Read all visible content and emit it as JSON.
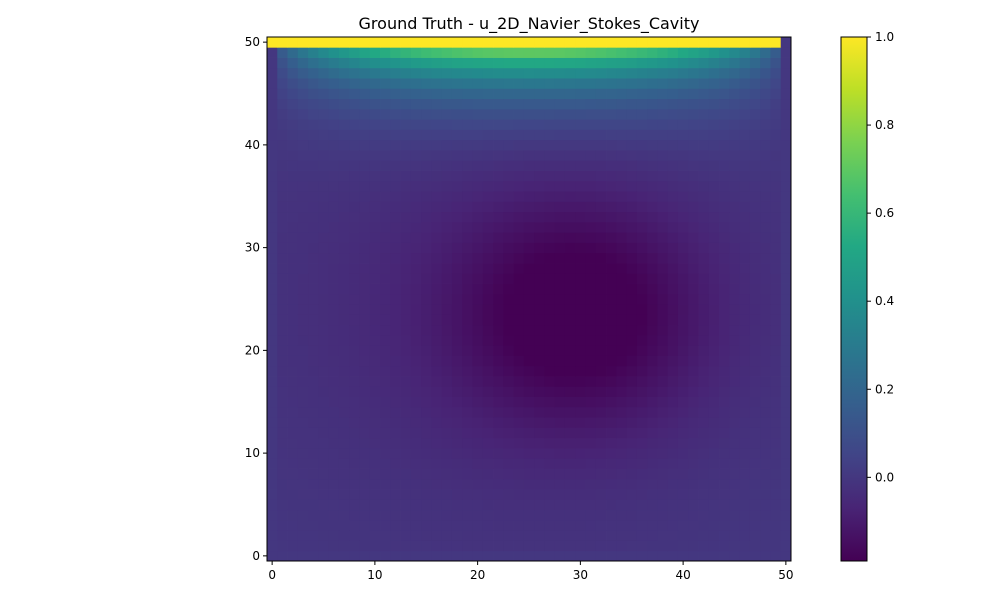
{
  "chart_data": {
    "type": "heatmap",
    "title": "Ground Truth - u_2D_Navier_Stokes_Cavity",
    "xlabel": "",
    "ylabel": "",
    "grid_size": [
      51,
      51
    ],
    "xlim": [
      -0.5,
      50.5
    ],
    "ylim": [
      -0.5,
      50.5
    ],
    "x_ticks": [
      0,
      10,
      20,
      30,
      40,
      50
    ],
    "y_ticks": [
      0,
      10,
      20,
      30,
      40,
      50
    ],
    "colormap": "viridis",
    "colorbar": {
      "vmin": -0.19,
      "vmax": 1.0,
      "ticks": [
        1.0,
        0.8,
        0.6,
        0.4,
        0.2,
        0.0
      ],
      "tick_labels": [
        "1.0",
        "0.8",
        "0.6",
        "0.4",
        "0.2",
        "0.0"
      ]
    },
    "field_description": "top lid row at u=1.0; strong gradient in upper rows; primary vortex minimum ~-0.19 near (31,24); near-zero values near walls",
    "grid": false
  }
}
